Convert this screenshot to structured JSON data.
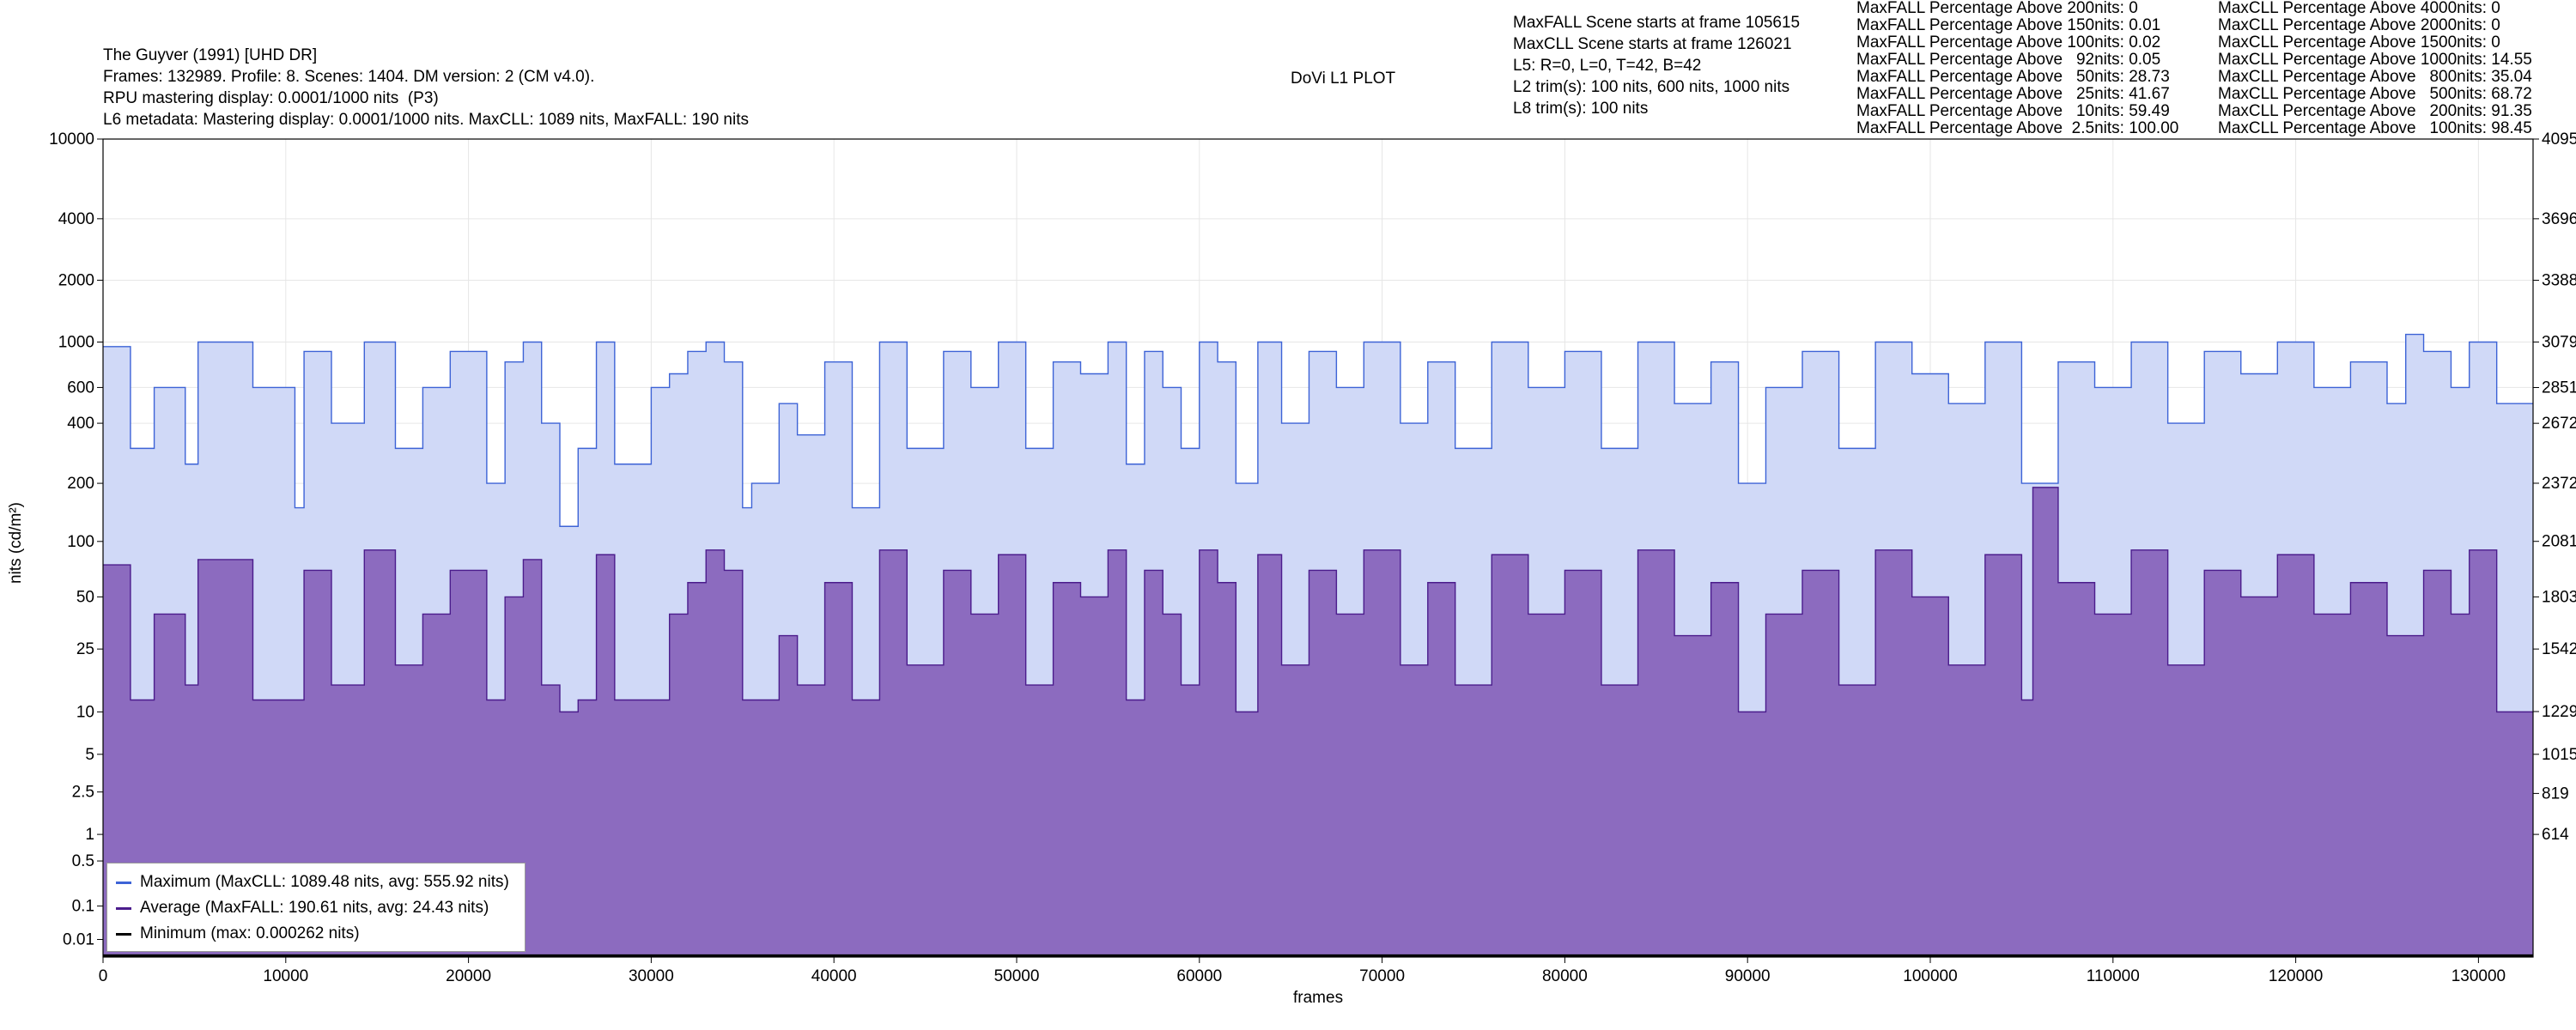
{
  "header": {
    "lines": [
      "The Guyver (1991) [UHD DR]",
      "Frames: 132989. Profile: 8. Scenes: 1404. DM version: 2 (CM v4.0).",
      "RPU mastering display: 0.0001/1000 nits  (P3)",
      "L6 metadata: Mastering display: 0.0001/1000 nits. MaxCLL: 1089 nits, MaxFALL: 190 nits"
    ],
    "plot_title": "DoVi L1 PLOT",
    "scene_info": [
      "MaxFALL Scene starts at frame 105615",
      "MaxCLL Scene starts at frame 126021",
      "L5: R=0, L=0, T=42, B=42",
      "L2 trim(s): 100 nits, 600 nits, 1000 nits",
      "L8 trim(s): 100 nits"
    ],
    "maxfall_percentages": [
      "MaxFALL Percentage Above 200nits: 0",
      "MaxFALL Percentage Above 150nits: 0.01",
      "MaxFALL Percentage Above 100nits: 0.02",
      "MaxFALL Percentage Above   92nits: 0.05",
      "MaxFALL Percentage Above   50nits: 28.73",
      "MaxFALL Percentage Above   25nits: 41.67",
      "MaxFALL Percentage Above   10nits: 59.49",
      "MaxFALL Percentage Above  2.5nits: 100.00"
    ],
    "maxcll_percentages": [
      "MaxCLL Percentage Above 4000nits: 0",
      "MaxCLL Percentage Above 2000nits: 0",
      "MaxCLL Percentage Above 1500nits: 0",
      "MaxCLL Percentage Above 1000nits: 14.55",
      "MaxCLL Percentage Above   800nits: 35.04",
      "MaxCLL Percentage Above   500nits: 68.72",
      "MaxCLL Percentage Above   200nits: 91.35",
      "MaxCLL Percentage Above   100nits: 98.45"
    ]
  },
  "chart_data": {
    "type": "area",
    "title": "DoVi L1 PLOT",
    "xlabel": "frames",
    "ylabel": "nits (cd/m²)",
    "y_scale": "PQ",
    "xlim": [
      0,
      132989
    ],
    "ylim": [
      0,
      10000
    ],
    "x_ticks": [
      0,
      10000,
      20000,
      30000,
      40000,
      50000,
      60000,
      70000,
      80000,
      90000,
      100000,
      110000,
      120000,
      130000
    ],
    "y_ticks": [
      0.01,
      0.1,
      0.5,
      1,
      2.5,
      5,
      10,
      25,
      50,
      100,
      200,
      400,
      600,
      1000,
      2000,
      4000,
      10000
    ],
    "y_tick_labels": [
      "0.01",
      "0.1",
      "0.5",
      "1",
      "2.5",
      "5",
      "10",
      "25",
      "50",
      "100",
      "200",
      "400",
      "600",
      "1000",
      "2000",
      "4000",
      "10000"
    ],
    "y2_ticks": [
      {
        "code": 614,
        "label": "614"
      },
      {
        "code": 819,
        "label": "819"
      },
      {
        "code": 1015,
        "label": "1015"
      },
      {
        "code": 1229,
        "label": "1229"
      },
      {
        "code": 1542,
        "label": "1542"
      },
      {
        "code": 1803,
        "label": "1803"
      },
      {
        "code": 2081,
        "label": "2081"
      },
      {
        "code": 2372,
        "label": "2372"
      },
      {
        "code": 2672,
        "label": "2672"
      },
      {
        "code": 2851,
        "label": "2851"
      },
      {
        "code": 3079,
        "label": "3079"
      },
      {
        "code": 3388,
        "label": "3388"
      },
      {
        "code": 3696,
        "label": "3696"
      },
      {
        "code": 4095,
        "label": "4095"
      }
    ],
    "grid": true,
    "legend_position": "bottom-left",
    "series": [
      {
        "name": "Maximum (MaxCLL: 1089.48 nits, avg: 555.92 nits)",
        "color": "#3d63d6",
        "fill": "#d0d9f7",
        "x": [
          0,
          1500,
          2800,
          4500,
          5200,
          8200,
          10500,
          11000,
          12500,
          14300,
          16000,
          17500,
          19000,
          21000,
          22000,
          23000,
          24000,
          25000,
          26000,
          27000,
          28000,
          30000,
          31000,
          32000,
          33000,
          34000,
          35000,
          35500,
          37000,
          38000,
          39500,
          41000,
          42500,
          44000,
          46000,
          47500,
          49000,
          50500,
          52000,
          53500,
          55000,
          56000,
          57000,
          58000,
          59000,
          60000,
          61000,
          62000,
          63200,
          64500,
          66000,
          67500,
          69000,
          71000,
          72500,
          74000,
          76000,
          78000,
          80000,
          82000,
          84000,
          86000,
          88000,
          89500,
          91000,
          93000,
          95000,
          97000,
          99000,
          101000,
          103000,
          105000,
          107000,
          109000,
          111000,
          113000,
          115000,
          117000,
          119000,
          121000,
          123000,
          125000,
          126021,
          127000,
          128500,
          129500,
          131000,
          132989
        ],
        "values": [
          950,
          300,
          600,
          250,
          1000,
          600,
          150,
          900,
          400,
          1000,
          300,
          600,
          900,
          200,
          800,
          1000,
          400,
          120,
          300,
          1000,
          250,
          600,
          700,
          900,
          1000,
          800,
          150,
          200,
          500,
          350,
          800,
          150,
          1000,
          300,
          900,
          600,
          1000,
          300,
          800,
          700,
          1000,
          250,
          900,
          600,
          300,
          1000,
          800,
          200,
          1000,
          400,
          900,
          600,
          1000,
          400,
          800,
          300,
          1000,
          600,
          900,
          300,
          1000,
          500,
          800,
          200,
          600,
          900,
          300,
          1000,
          700,
          500,
          1000,
          200,
          800,
          600,
          1000,
          400,
          900,
          700,
          1000,
          600,
          800,
          500,
          1089.48,
          900,
          600,
          1000,
          500,
          500
        ]
      },
      {
        "name": "Average (MaxFALL: 190.61 nits, avg: 24.43 nits)",
        "color": "#4b1c8c",
        "fill": "#8c6bbf",
        "x": [
          0,
          1500,
          2800,
          4500,
          5200,
          8200,
          10500,
          11000,
          12500,
          14300,
          16000,
          17500,
          19000,
          21000,
          22000,
          23000,
          24000,
          25000,
          26000,
          27000,
          28000,
          30000,
          31000,
          32000,
          33000,
          34000,
          35000,
          35500,
          37000,
          38000,
          39500,
          41000,
          42500,
          44000,
          46000,
          47500,
          49000,
          50500,
          52000,
          53500,
          55000,
          56000,
          57000,
          58000,
          59000,
          60000,
          61000,
          62000,
          63200,
          64500,
          66000,
          67500,
          69000,
          71000,
          72500,
          74000,
          76000,
          78000,
          80000,
          82000,
          84000,
          86000,
          88000,
          89500,
          91000,
          93000,
          95000,
          97000,
          99000,
          101000,
          103000,
          105000,
          105615,
          107000,
          109000,
          111000,
          113000,
          115000,
          117000,
          119000,
          121000,
          123000,
          125000,
          127000,
          128500,
          129500,
          131000,
          132989
        ],
        "values": [
          75,
          12,
          40,
          15,
          80,
          12,
          12,
          70,
          15,
          90,
          20,
          40,
          70,
          12,
          50,
          80,
          15,
          10,
          12,
          85,
          12,
          12,
          40,
          60,
          90,
          70,
          12,
          12,
          30,
          15,
          60,
          12,
          90,
          20,
          70,
          40,
          85,
          15,
          60,
          50,
          90,
          12,
          70,
          40,
          15,
          90,
          60,
          10,
          85,
          20,
          70,
          40,
          90,
          20,
          60,
          15,
          85,
          40,
          70,
          15,
          90,
          30,
          60,
          10,
          40,
          70,
          15,
          90,
          50,
          20,
          85,
          12,
          190.61,
          60,
          40,
          90,
          20,
          70,
          50,
          85,
          40,
          60,
          30,
          70,
          40,
          90,
          10,
          10
        ]
      },
      {
        "name": "Minimum (max: 0.000262 nits)",
        "color": "#000000",
        "fill": "none",
        "x": [
          0,
          132989
        ],
        "values": [
          0.0001,
          0.0001
        ]
      }
    ]
  }
}
